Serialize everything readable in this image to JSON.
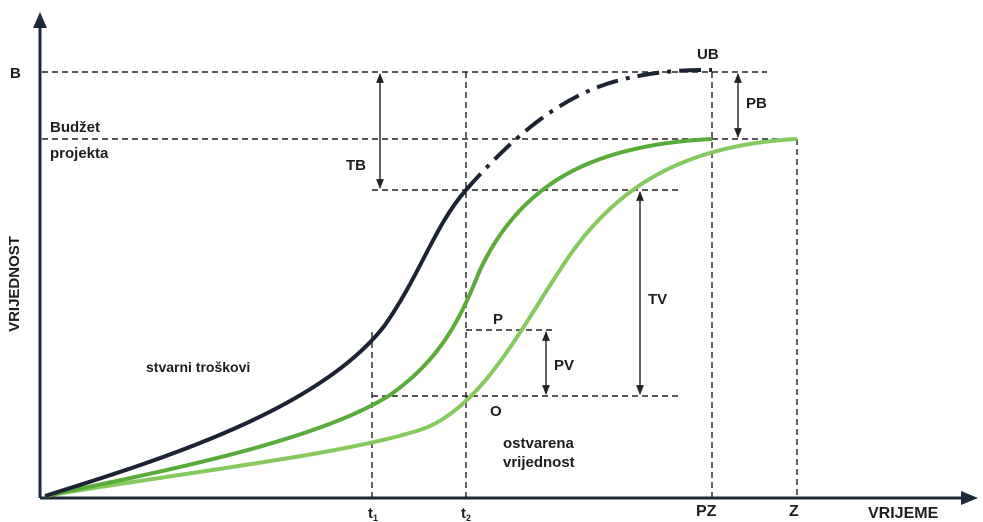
{
  "axes": {
    "y_label": "VRIJEDNOST",
    "x_label": "VRIJEME",
    "y_ticks": {
      "b": "B"
    },
    "x_ticks": {
      "t1": "t",
      "t1_sub": "1",
      "t2": "t",
      "t2_sub": "2",
      "pz": "PZ",
      "z": "Z"
    }
  },
  "labels": {
    "budget_line1": "Budžet",
    "budget_line2": "projekta",
    "ub": "UB",
    "pb": "PB",
    "tb": "TB",
    "tv": "TV",
    "pv": "PV",
    "p": "P",
    "o": "O",
    "actual_costs": "stvarni troškovi",
    "earned_value_line1": "ostvarena",
    "earned_value_line2": "vrijednost"
  },
  "colors": {
    "actual_cost": "#1c2333",
    "planned_value": "#5aac3a",
    "earned_value": "#86c95f",
    "axis": "#1e2a3a"
  }
}
